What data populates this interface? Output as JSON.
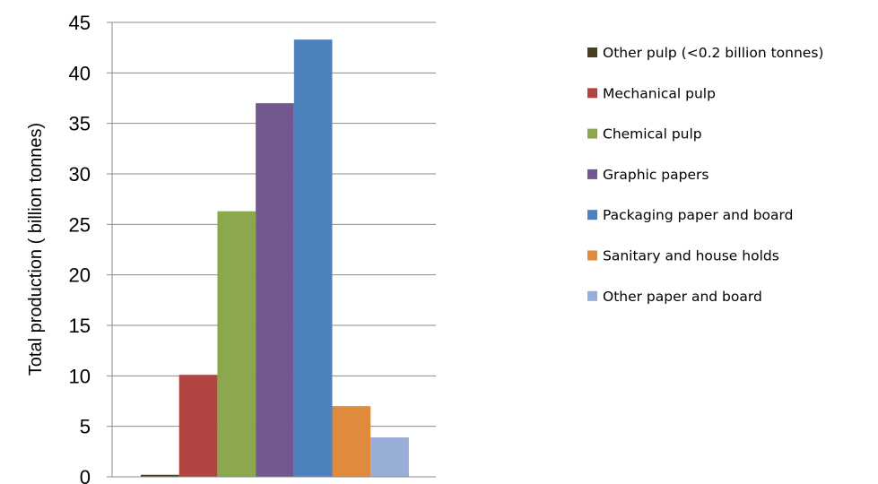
{
  "chart_data": {
    "type": "bar",
    "title": "",
    "xlabel": "",
    "ylabel": "Total production ( billion   tonnes)",
    "ylim": [
      0,
      45
    ],
    "yticks": [
      0,
      5,
      10,
      15,
      20,
      25,
      30,
      35,
      40,
      45
    ],
    "grid": true,
    "legend_position": "right",
    "series": [
      {
        "name": "Other pulp (<0.2 billion tonnes)",
        "value": 0.2,
        "color": "#4a3f22"
      },
      {
        "name": "Mechanical pulp",
        "value": 10.1,
        "color": "#b24441"
      },
      {
        "name": "Chemical pulp",
        "value": 26.3,
        "color": "#8ba84e"
      },
      {
        "name": "Graphic papers",
        "value": 37.0,
        "color": "#725791"
      },
      {
        "name": "Packaging paper and board",
        "value": 43.3,
        "color": "#4d82be"
      },
      {
        "name": "Sanitary and house holds",
        "value": 7.0,
        "color": "#df8a3d"
      },
      {
        "name": "Other paper and board",
        "value": 3.9,
        "color": "#98aed6"
      }
    ]
  }
}
